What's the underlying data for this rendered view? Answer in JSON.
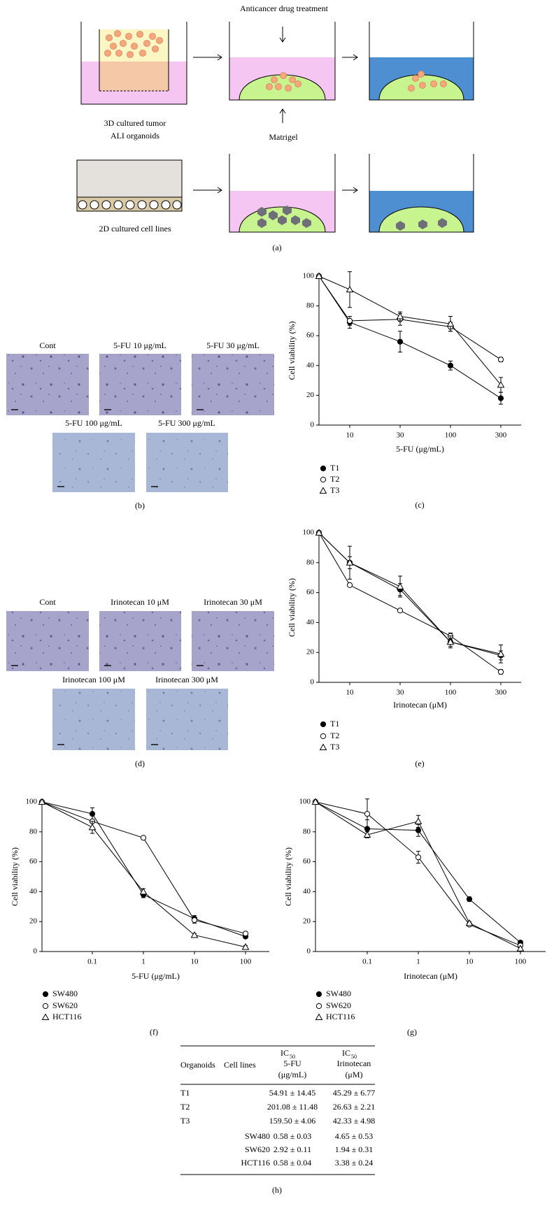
{
  "diagram": {
    "top_label": "Anticancer drug treatment",
    "left_label_1": "3D cultured tumor",
    "left_label_2": "ALI organoids",
    "matrigel": "Matrigel",
    "bottom_label": "2D cultured cell lines",
    "panel_label": "(a)"
  },
  "micrographs_b": {
    "labels": [
      "Cont",
      "5-FU 10 μg/mL",
      "5-FU 30 μg/mL",
      "5-FU 100 μg/mL",
      "5-FU 300 μg/mL"
    ],
    "panel_label": "(b)"
  },
  "micrographs_d": {
    "labels": [
      "Cont",
      "Irinotecan 10 μM",
      "Irinotecan 30 μM",
      "Irinotecan 100 μM",
      "Irinotecan 300 μM"
    ],
    "panel_label": "(d)"
  },
  "chart_data": [
    {
      "type": "line",
      "panel_label": "(c)",
      "xlabel": "5-FU (μg/mL)",
      "ylabel": "Cell viability (%)",
      "categories": [
        null,
        "10",
        "30",
        "100",
        "300"
      ],
      "ylim": [
        0,
        100
      ],
      "yticks": [
        0,
        20,
        40,
        60,
        80,
        100
      ],
      "series": [
        {
          "name": "T1",
          "color": "#000000",
          "marker": "filled-circle",
          "values": [
            100,
            69,
            56,
            40,
            18
          ],
          "errors": [
            0,
            4,
            7,
            3,
            4
          ]
        },
        {
          "name": "T2",
          "color": "#000000",
          "marker": "open-circle",
          "values": [
            100,
            70,
            71,
            66,
            44
          ],
          "errors": [
            0,
            3,
            4,
            3,
            1.5
          ]
        },
        {
          "name": "T3",
          "color": "#000000",
          "marker": "open-triangle",
          "values": [
            100,
            91,
            73,
            68,
            27
          ],
          "errors": [
            0,
            12,
            3,
            5,
            5
          ]
        }
      ]
    },
    {
      "type": "line",
      "panel_label": "(e)",
      "xlabel": "Irinotecan (μM)",
      "ylabel": "Cell viability (%)",
      "categories": [
        null,
        "10",
        "30",
        "100",
        "300"
      ],
      "ylim": [
        0,
        100
      ],
      "yticks": [
        0,
        20,
        40,
        60,
        80,
        100
      ],
      "series": [
        {
          "name": "T1",
          "color": "#000000",
          "marker": "filled-circle",
          "values": [
            100,
            80,
            62,
            27,
            18
          ],
          "errors": [
            0,
            4,
            4,
            3,
            3
          ]
        },
        {
          "name": "T2",
          "color": "#000000",
          "marker": "open-circle",
          "values": [
            100,
            65,
            48,
            31,
            7
          ],
          "errors": [
            0,
            1,
            1,
            2,
            1.5
          ]
        },
        {
          "name": "T3",
          "color": "#000000",
          "marker": "open-triangle",
          "values": [
            100,
            80,
            64,
            27,
            19
          ],
          "errors": [
            0,
            11,
            7,
            4,
            6
          ]
        }
      ]
    },
    {
      "type": "line",
      "panel_label": "(f)",
      "xlabel": "5-FU (μg/mL)",
      "ylabel": "Cell viability (%)",
      "categories": [
        null,
        "0.1",
        "1",
        "10",
        "100"
      ],
      "ylim": [
        0,
        100
      ],
      "yticks": [
        0,
        20,
        40,
        60,
        80,
        100
      ],
      "series": [
        {
          "name": "SW480",
          "color": "#000000",
          "marker": "filled-circle",
          "values": [
            100,
            92,
            38,
            22,
            10
          ],
          "errors": [
            0,
            4,
            2,
            2,
            1
          ]
        },
        {
          "name": "SW620",
          "color": "#000000",
          "marker": "open-circle",
          "values": [
            100,
            87,
            76,
            21,
            12
          ],
          "errors": [
            0,
            5,
            1,
            2,
            1
          ]
        },
        {
          "name": "HCT116",
          "color": "#000000",
          "marker": "open-triangle",
          "values": [
            100,
            83,
            40,
            11,
            3
          ],
          "errors": [
            0,
            4,
            2,
            1,
            1
          ]
        }
      ]
    },
    {
      "type": "line",
      "panel_label": "(g)",
      "xlabel": "Irinotecan (μM)",
      "ylabel": "Cell viability (%)",
      "categories": [
        null,
        "0.1",
        "1",
        "10",
        "100"
      ],
      "ylim": [
        0,
        100
      ],
      "yticks": [
        0,
        20,
        40,
        60,
        80,
        100
      ],
      "series": [
        {
          "name": "SW480",
          "color": "#000000",
          "marker": "filled-circle",
          "values": [
            100,
            82,
            81,
            35,
            6
          ],
          "errors": [
            0,
            6,
            4,
            1.5,
            1
          ]
        },
        {
          "name": "SW620",
          "color": "#000000",
          "marker": "open-circle",
          "values": [
            100,
            92,
            63,
            18,
            4
          ],
          "errors": [
            0,
            10,
            4,
            1,
            1
          ]
        },
        {
          "name": "HCT116",
          "color": "#000000",
          "marker": "open-triangle",
          "values": [
            100,
            78,
            87,
            19,
            2
          ],
          "errors": [
            0,
            2,
            4,
            1,
            1
          ]
        }
      ]
    }
  ],
  "table": {
    "header": [
      "Organoids",
      "Cell lines"
    ],
    "ic_columns": [
      {
        "label": "IC",
        "subscript": "50",
        "drug": "5-FU",
        "unit": "(μg/mL)"
      },
      {
        "label": "IC",
        "subscript": "50",
        "drug": "Irinotecan",
        "unit": "(μM)"
      }
    ],
    "rows": [
      {
        "organoid": "T1",
        "fu": "54.91 ± 14.45",
        "irinotecan": "45.29 ± 6.77"
      },
      {
        "organoid": "T2",
        "fu": "201.08 ± 11.48",
        "irinotecan": "26.63 ± 2.21"
      },
      {
        "organoid": "T3",
        "fu": "159.50 ± 4.06",
        "irinotecan": "42.33 ± 4.98"
      },
      {
        "cell_line": "SW480",
        "fu": "0.58 ± 0.03",
        "irinotecan": "4.65 ± 0.53"
      },
      {
        "cell_line": "SW620",
        "fu": "2.92 ± 0.11",
        "irinotecan": "1.94 ± 0.31"
      },
      {
        "cell_line": "HCT116",
        "fu": "0.58 ± 0.04",
        "irinotecan": "3.38 ± 0.24"
      }
    ],
    "panel_label": "(h)"
  }
}
